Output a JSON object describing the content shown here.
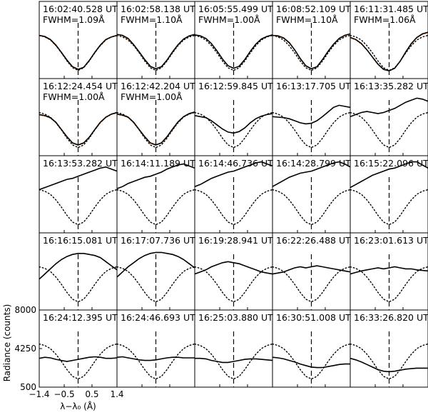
{
  "chart_data": {
    "type": "line",
    "layout": {
      "rows": 5,
      "cols": 5
    },
    "ylabel": "Radiance (counts)",
    "xlabel": "λ−λ₀ (Å)",
    "xlim": [
      -1.4,
      1.4
    ],
    "xticks": [
      -1.4,
      -0.5,
      0.5,
      1.4
    ],
    "xtick_labels": [
      "−1.4",
      "−0.5",
      "0.5",
      "1.4"
    ],
    "ylim": [
      500,
      8000
    ],
    "yticks": [
      500,
      4250,
      8000
    ],
    "ytick_labels": [
      "500",
      "4250",
      "8000"
    ],
    "center_line_x": 0,
    "colors": {
      "observed": "#000000",
      "fit": "#d2691e",
      "reference": "#000000"
    },
    "x": [
      -1.4,
      -1.2,
      -1.0,
      -0.8,
      -0.6,
      -0.4,
      -0.2,
      0.0,
      0.2,
      0.4,
      0.6,
      0.8,
      1.0,
      1.2,
      1.4
    ],
    "reference_profile": [
      4700,
      4550,
      4250,
      3700,
      3000,
      2200,
      1550,
      1300,
      1550,
      2200,
      3000,
      3700,
      4250,
      4550,
      4700
    ],
    "panels": [
      {
        "title": "16:02:40.528 UT",
        "fwhm": "FWHM=1.09Å",
        "observed": [
          4700,
          4600,
          4300,
          3750,
          3050,
          2300,
          1650,
          1400,
          1600,
          2250,
          3050,
          3750,
          4300,
          4550,
          4700
        ],
        "fit": [
          4650,
          4550,
          4250,
          3700,
          3000,
          2250,
          1600,
          1350,
          1600,
          2250,
          3000,
          3700,
          4250,
          4550,
          4650
        ]
      },
      {
        "title": "16:02:58.138 UT",
        "fwhm": "FWHM=1.10Å",
        "observed": [
          4800,
          4700,
          4400,
          3800,
          3100,
          2350,
          1700,
          1450,
          1650,
          2300,
          3100,
          3800,
          4350,
          4650,
          4800
        ],
        "fit": [
          4750,
          4650,
          4350,
          3750,
          3050,
          2300,
          1650,
          1400,
          1650,
          2300,
          3050,
          3750,
          4350,
          4650,
          4750
        ]
      },
      {
        "title": "16:05:55.499 UT",
        "fwhm": "FWHM=1.00Å",
        "observed": [
          4750,
          4650,
          4400,
          3900,
          3200,
          2400,
          1750,
          1500,
          1700,
          2350,
          3150,
          3850,
          4350,
          4600,
          4750
        ],
        "fit": []
      },
      {
        "title": "16:08:52.109 UT",
        "fwhm": "FWHM=1.10Å",
        "observed": [
          4700,
          4650,
          4450,
          4000,
          3300,
          2450,
          1750,
          1450,
          1650,
          2350,
          3150,
          3850,
          4400,
          4700,
          4850
        ],
        "fit": [
          4700,
          4600,
          4400,
          3950,
          3250,
          2400,
          1700,
          1400,
          1650,
          2350,
          3150,
          3850,
          4350,
          4650,
          4800
        ]
      },
      {
        "title": "16:11:31.485 UT",
        "fwhm": "FWHM=1.06Å",
        "observed": [
          4500,
          4300,
          3900,
          3300,
          2600,
          1900,
          1400,
          1250,
          1500,
          2200,
          3100,
          3900,
          4500,
          4850,
          5000
        ],
        "fit": [
          4450,
          4250,
          3850,
          3250,
          2550,
          1850,
          1350,
          1250,
          1500,
          2200,
          3050,
          3850,
          4450,
          4800,
          4950
        ]
      },
      {
        "title": "16:12:24.454 UT",
        "fwhm": "FWHM=1.00Å",
        "observed": [
          4500,
          4400,
          4200,
          3750,
          3050,
          2350,
          1750,
          1550,
          1750,
          2300,
          3050,
          3750,
          4250,
          4550,
          4700
        ],
        "fit": [
          4450,
          4350,
          4150,
          3700,
          3000,
          2300,
          1700,
          1500,
          1700,
          2300,
          3000,
          3700,
          4200,
          4500,
          4650
        ]
      },
      {
        "title": "16:12:42.204 UT",
        "fwhm": "FWHM=1.00Å",
        "observed": [
          4550,
          4450,
          4250,
          3750,
          3050,
          2350,
          1750,
          1550,
          1750,
          2350,
          3100,
          3800,
          4300,
          4600,
          4750
        ],
        "fit": [
          4500,
          4400,
          4200,
          3700,
          3000,
          2300,
          1700,
          1500,
          1700,
          2300,
          3050,
          3750,
          4250,
          4550,
          4700
        ]
      },
      {
        "title": "16:12:59.845 UT",
        "fwhm": "",
        "observed": [
          4400,
          4300,
          4200,
          3900,
          3500,
          3100,
          2800,
          2700,
          2850,
          3200,
          3700,
          4100,
          4350,
          4500,
          4600
        ],
        "fit": []
      },
      {
        "title": "16:13:17.705 UT",
        "fwhm": "",
        "observed": [
          4300,
          4250,
          4200,
          4100,
          3900,
          3700,
          3600,
          3650,
          3900,
          4300,
          4750,
          5200,
          5400,
          5300,
          5200
        ],
        "fit": []
      },
      {
        "title": "16:13:35.282 UT",
        "fwhm": "",
        "observed": [
          4300,
          4500,
          4700,
          4800,
          4700,
          4600,
          4700,
          4900,
          5100,
          5400,
          5700,
          5900,
          6100,
          6000,
          5800
        ],
        "fit": []
      },
      {
        "title": "16:13:53.282 UT",
        "fwhm": "",
        "observed": [
          4700,
          4900,
          5100,
          5300,
          5500,
          5700,
          5800,
          6000,
          6200,
          6400,
          6600,
          6800,
          6900,
          6700,
          6500
        ],
        "fit": []
      },
      {
        "title": "16:14:11.189 UT",
        "fwhm": "",
        "observed": [
          4800,
          5000,
          5300,
          5500,
          5700,
          5900,
          6000,
          6200,
          6400,
          6700,
          6900,
          7100,
          7200,
          7000,
          6800
        ],
        "fit": []
      },
      {
        "title": "16:14:46.736 UT",
        "fwhm": "",
        "observed": [
          5000,
          5200,
          5500,
          5800,
          6000,
          6200,
          6400,
          6500,
          6700,
          6900,
          7100,
          7300,
          7400,
          7200,
          7000
        ],
        "fit": []
      },
      {
        "title": "16:14:28.799 UT",
        "fwhm": "",
        "observed": [
          5000,
          5300,
          5600,
          5900,
          6100,
          6300,
          6400,
          6500,
          6700,
          6900,
          7100,
          7300,
          7400,
          7200,
          6900
        ],
        "fit": []
      },
      {
        "title": "16:15:22.096 UT",
        "fwhm": "",
        "observed": [
          4900,
          5200,
          5500,
          5800,
          6100,
          6300,
          6500,
          6700,
          6800,
          7000,
          7200,
          7400,
          7400,
          7100,
          6800
        ],
        "fit": []
      },
      {
        "title": "16:16:15.081 UT",
        "fwhm": "",
        "observed": [
          3500,
          4000,
          4500,
          5000,
          5400,
          5700,
          5900,
          6000,
          6000,
          5900,
          5800,
          5600,
          5200,
          4800,
          4400
        ],
        "fit": []
      },
      {
        "title": "16:17:07.736 UT",
        "fwhm": "",
        "observed": [
          3700,
          4200,
          4700,
          5100,
          5500,
          5800,
          6000,
          6100,
          6100,
          6000,
          5900,
          5700,
          5400,
          5000,
          4600
        ],
        "fit": []
      },
      {
        "title": "16:19:28.941 UT",
        "fwhm": "",
        "observed": [
          4000,
          4200,
          4400,
          4700,
          4900,
          5100,
          5200,
          5100,
          5000,
          4800,
          4600,
          4400,
          4200,
          4100,
          4000
        ],
        "fit": []
      },
      {
        "title": "16:22:26.488 UT",
        "fwhm": "",
        "observed": [
          4000,
          4100,
          4200,
          4400,
          4600,
          4700,
          4600,
          4700,
          4800,
          4700,
          4600,
          4500,
          4400,
          4300,
          4200
        ],
        "fit": []
      },
      {
        "title": "16:23:01.613 UT",
        "fwhm": "",
        "observed": [
          4000,
          4150,
          4300,
          4400,
          4500,
          4600,
          4500,
          4600,
          4700,
          4600,
          4500,
          4500,
          4400,
          4350,
          4300
        ],
        "fit": []
      },
      {
        "title": "16:24:12.395 UT",
        "fwhm": "",
        "observed": [
          3300,
          3400,
          3350,
          3200,
          3100,
          3000,
          3100,
          3200,
          3300,
          3400,
          3450,
          3400,
          3300,
          3300,
          3350
        ],
        "fit": []
      },
      {
        "title": "16:24:46.693 UT",
        "fwhm": "",
        "observed": [
          3400,
          3450,
          3350,
          3250,
          3150,
          3100,
          3100,
          3150,
          3250,
          3350,
          3400,
          3400,
          3350,
          3350,
          3350
        ],
        "fit": []
      },
      {
        "title": "16:25:03.880 UT",
        "fwhm": "",
        "observed": [
          3300,
          3300,
          3250,
          3100,
          3000,
          2900,
          2900,
          3000,
          3100,
          3200,
          3250,
          3250,
          3200,
          3150,
          3100
        ],
        "fit": []
      },
      {
        "title": "16:30:51.008 UT",
        "fwhm": "",
        "observed": [
          3400,
          3350,
          3250,
          3100,
          2950,
          2750,
          2600,
          2450,
          2400,
          2400,
          2500,
          2600,
          2700,
          2750,
          2750
        ],
        "fit": []
      },
      {
        "title": "16:33:26.820 UT",
        "fwhm": "",
        "observed": [
          3300,
          3150,
          2950,
          2700,
          2450,
          2200,
          2050,
          2000,
          2050,
          2150,
          2250,
          2300,
          2350,
          2350,
          2350
        ],
        "fit": []
      }
    ]
  }
}
